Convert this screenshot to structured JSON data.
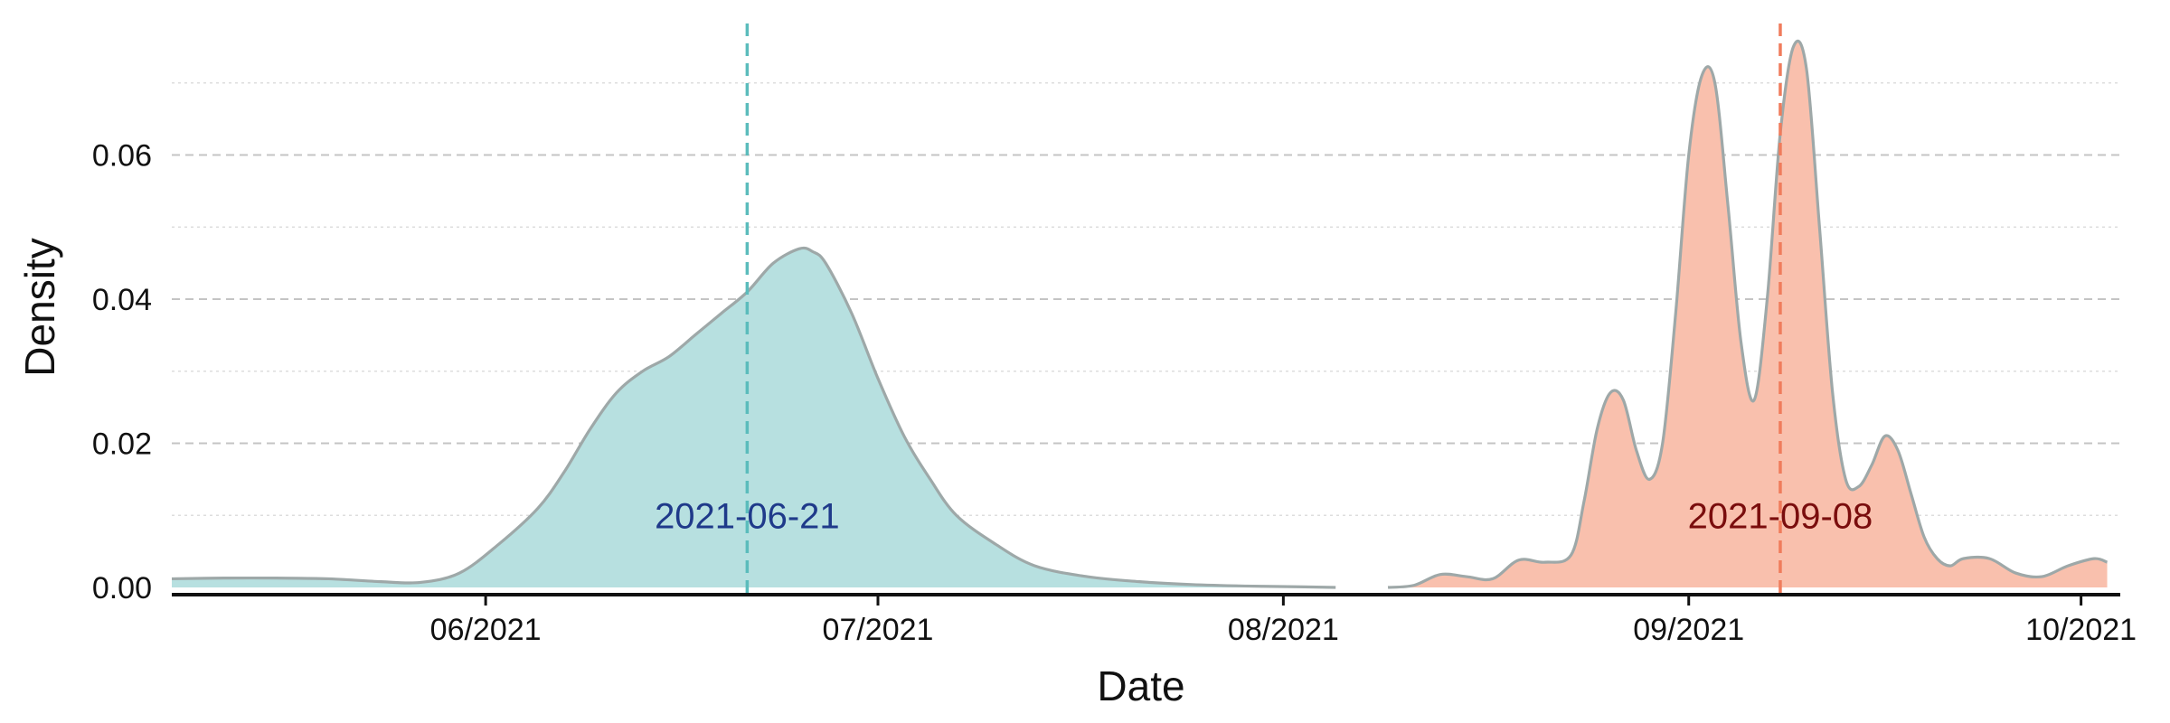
{
  "chart_data": {
    "type": "area",
    "title": "",
    "xlabel": "Date",
    "ylabel": "Density",
    "x_ticks": [
      "2021-06-01",
      "2021-07-01",
      "2021-08-01",
      "2021-09-01",
      "2021-10-01"
    ],
    "x_tick_labels": [
      "06/2021",
      "07/2021",
      "08/2021",
      "09/2021",
      "10/2021"
    ],
    "y_ticks": [
      0.0,
      0.02,
      0.04,
      0.06
    ],
    "y_tick_labels": [
      "0.00",
      "0.02",
      "0.04",
      "0.06"
    ],
    "xlim": [
      "2021-05-08",
      "2021-10-04"
    ],
    "ylim": [
      -0.001,
      0.079
    ],
    "grid": {
      "major_y": true,
      "minor_y": true,
      "x": false
    },
    "series": [
      {
        "color": "#b7e0e0",
        "x": [
          "2021-05-08",
          "2021-05-12",
          "2021-05-16",
          "2021-05-20",
          "2021-05-24",
          "2021-05-27",
          "2021-05-30",
          "2021-06-02",
          "2021-06-05",
          "2021-06-07",
          "2021-06-09",
          "2021-06-11",
          "2021-06-13",
          "2021-06-15",
          "2021-06-17",
          "2021-06-19",
          "2021-06-21",
          "2021-06-23",
          "2021-06-25",
          "2021-06-26",
          "2021-06-27",
          "2021-06-29",
          "2021-07-01",
          "2021-07-03",
          "2021-07-05",
          "2021-07-07",
          "2021-07-10",
          "2021-07-13",
          "2021-07-17",
          "2021-07-21",
          "2021-07-25",
          "2021-07-29",
          "2021-08-02",
          "2021-08-05"
        ],
        "values": [
          0.0012,
          0.0013,
          0.0013,
          0.0012,
          0.0008,
          0.0007,
          0.002,
          0.006,
          0.011,
          0.016,
          0.022,
          0.027,
          0.03,
          0.032,
          0.035,
          0.038,
          0.041,
          0.045,
          0.047,
          0.0466,
          0.045,
          0.038,
          0.029,
          0.021,
          0.015,
          0.01,
          0.006,
          0.003,
          0.0015,
          0.0008,
          0.0004,
          0.0002,
          0.0001,
          0.0
        ]
      },
      {
        "color": "#f9c0ad",
        "x": [
          "2021-08-09",
          "2021-08-11",
          "2021-08-13",
          "2021-08-15",
          "2021-08-17",
          "2021-08-19",
          "2021-08-21",
          "2021-08-23",
          "2021-08-24",
          "2021-08-25",
          "2021-08-26",
          "2021-08-27",
          "2021-08-28",
          "2021-08-29",
          "2021-08-30",
          "2021-08-31",
          "2021-09-01",
          "2021-09-02",
          "2021-09-03",
          "2021-09-04",
          "2021-09-05",
          "2021-09-06",
          "2021-09-07",
          "2021-09-08",
          "2021-09-09",
          "2021-09-10",
          "2021-09-11",
          "2021-09-12",
          "2021-09-13",
          "2021-09-14",
          "2021-09-15",
          "2021-09-16",
          "2021-09-17",
          "2021-09-18",
          "2021-09-19",
          "2021-09-20",
          "2021-09-21",
          "2021-09-22",
          "2021-09-24",
          "2021-09-26",
          "2021-09-28",
          "2021-09-30",
          "2021-10-02",
          "2021-10-03"
        ],
        "values": [
          0.0,
          0.0003,
          0.0018,
          0.0015,
          0.0012,
          0.0038,
          0.0035,
          0.0045,
          0.012,
          0.022,
          0.027,
          0.026,
          0.019,
          0.015,
          0.02,
          0.038,
          0.06,
          0.071,
          0.07,
          0.053,
          0.034,
          0.026,
          0.04,
          0.063,
          0.075,
          0.072,
          0.05,
          0.027,
          0.015,
          0.014,
          0.017,
          0.021,
          0.019,
          0.013,
          0.007,
          0.004,
          0.003,
          0.004,
          0.004,
          0.002,
          0.0015,
          0.003,
          0.004,
          0.0035
        ]
      }
    ],
    "reference_lines": [
      {
        "x": "2021-06-21",
        "label": "2021-06-21",
        "line_color": "#5bbcbc",
        "text_color": "#1f3a8a",
        "label_y": 0.01
      },
      {
        "x": "2021-09-08",
        "label": "2021-09-08",
        "line_color": "#f07c5c",
        "text_color": "#7a0d0d",
        "label_y": 0.01
      }
    ]
  }
}
